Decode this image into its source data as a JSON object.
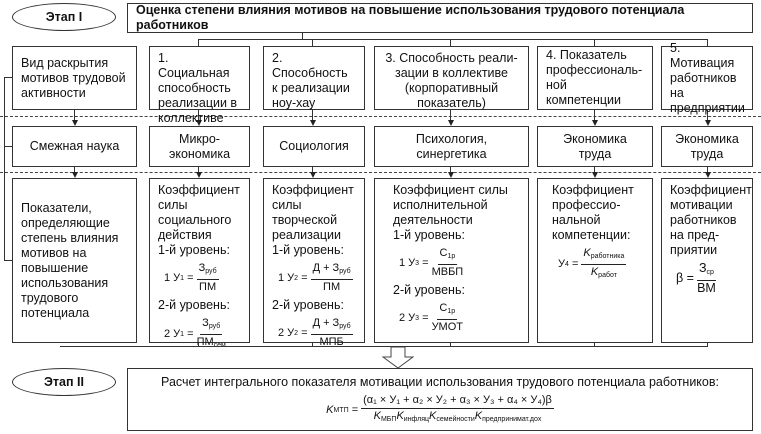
{
  "stage1": "Этап I",
  "stage2": "Этап II",
  "title": "Оценка степени влияния мотивов на повышение использования трудового потенциала работников",
  "rows": {
    "r1": [
      "Вид раскрытия мотивов трудовой активности",
      "1. Социальная способность реализации в коллективе",
      "2. Способность к реализации ноу-хау",
      "3. Способность реали­зации в коллективе (корпоративный показатель)",
      "4. Показатель профессиональ­ной компетенции",
      "5. Мотивация работников на предприятии"
    ],
    "r2": [
      "Смежная наука",
      "Микро-экономика",
      "Социология",
      "Психология, синергетика",
      "Экономика труда",
      "Экономика труда"
    ],
    "r3": [
      "Показатели, определяющие степень влияния мотивов на повышение использования трудового потенциала",
      "Коэффициент силы социального действия",
      "Коэффициент силы творческой реализации",
      "Коэффициент силы исполнительной деятельности",
      "Коэффициент профессио­нальной компетенции:",
      "Коэффициент мотивации работников на пред­приятии"
    ]
  },
  "level1": "1-й уровень:",
  "level2": "2-й уровень:",
  "formulas": {
    "c1a": {
      "lhs": "1 У",
      "lsub": "1",
      "num": "З",
      "numsub": "руб",
      "den": "ПМ",
      "densub": ""
    },
    "c1b": {
      "lhs": "2 У",
      "lsub": "1",
      "num": "З",
      "numsub": "руб",
      "den": "ПМ",
      "densub": "сем"
    },
    "c2a": {
      "lhs": "1 У",
      "lsub": "2",
      "num": "Д + З",
      "numsub": "руб",
      "den": "ПМ",
      "densub": ""
    },
    "c2b": {
      "lhs": "2 У",
      "lsub": "2",
      "num": "Д + З",
      "numsub": "руб",
      "den": "МПБ",
      "densub": ""
    },
    "c3a": {
      "lhs": "1 У",
      "lsub": "3",
      "num": "С",
      "numsub": "1р",
      "den": "МВБП",
      "densub": ""
    },
    "c3b": {
      "lhs": "2 У",
      "lsub": "3",
      "num": "С",
      "numsub": "1р",
      "den": "УМОТ",
      "densub": ""
    },
    "c4": {
      "lhs": "У",
      "lsub": "4",
      "num": "K",
      "numsub": "работника",
      "den": "K",
      "densub": "работ"
    },
    "c5": {
      "lhs": "β",
      "lsub": "",
      "num": "З",
      "numsub": "ср",
      "den": "ВМ",
      "densub": ""
    }
  },
  "bottom": {
    "text": "Расчет интегрального показателя мотивации использования трудового потенциала работников:",
    "lhs": "K",
    "lsub": "МТП",
    "num": "(α₁ × У₁ + α₂ × У₂ + α₃ × У₃ + α₄ × У₄)β",
    "den": [
      {
        "k": "K",
        "s": "МБП"
      },
      {
        "k": "K",
        "s": "инфляц"
      },
      {
        "k": "K",
        "s": "семейности"
      },
      {
        "k": "K",
        "s": "предпринимат.дох"
      }
    ]
  }
}
